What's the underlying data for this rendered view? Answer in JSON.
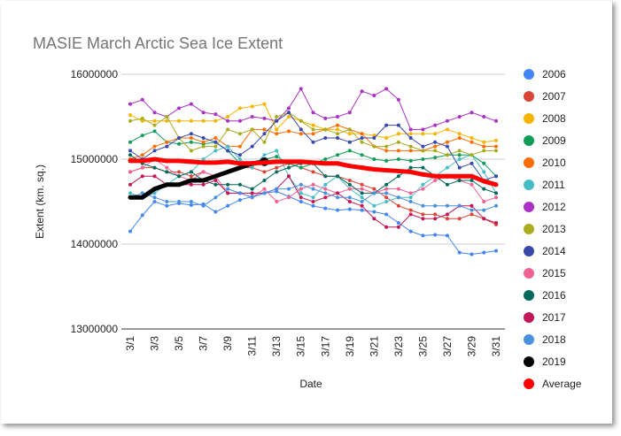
{
  "chart_data": {
    "type": "line",
    "title": "MASIE March Arctic Sea Ice Extent",
    "x_label": "Date",
    "y_label": "Extent (km. sq.)",
    "categories": [
      "3/1",
      null,
      "3/3",
      null,
      "3/5",
      null,
      "3/7",
      null,
      "3/9",
      null,
      "3/11",
      null,
      "3/13",
      null,
      "3/15",
      null,
      "3/17",
      null,
      "3/19",
      null,
      "3/21",
      null,
      "3/23",
      null,
      "3/25",
      null,
      "3/27",
      null,
      "3/29",
      null,
      "3/31"
    ],
    "ylim": [
      13000000,
      16000000
    ],
    "yticks": [
      13000000,
      14000000,
      15000000,
      16000000
    ],
    "grid": true,
    "legend": "right",
    "series": [
      {
        "name": "2006",
        "color": "#4285f4",
        "values": [
          14150000,
          14340000,
          14500000,
          14450000,
          14480000,
          14460000,
          14470000,
          14380000,
          14450000,
          14520000,
          14560000,
          14600000,
          14620000,
          14560000,
          14500000,
          14450000,
          14420000,
          14400000,
          14410000,
          14400000,
          14380000,
          14350000,
          14250000,
          14150000,
          14100000,
          14110000,
          14100000,
          13900000,
          13880000,
          13900000,
          13920000
        ]
      },
      {
        "name": "2007",
        "color": "#db4437",
        "values": [
          14850000,
          14900000,
          14900000,
          14850000,
          14850000,
          14800000,
          14850000,
          14800000,
          14850000,
          14900000,
          14900000,
          14850000,
          14900000,
          14950000,
          14900000,
          14850000,
          14800000,
          14800000,
          14750000,
          14700000,
          14650000,
          14550000,
          14450000,
          14400000,
          14350000,
          14350000,
          14300000,
          14300000,
          14350000,
          14300000,
          14230000
        ]
      },
      {
        "name": "2008",
        "color": "#f4b400",
        "values": [
          15520000,
          15450000,
          15450000,
          15450000,
          15450000,
          15450000,
          15450000,
          15450000,
          15500000,
          15600000,
          15620000,
          15650000,
          15350000,
          15500000,
          15450000,
          15400000,
          15350000,
          15350000,
          15300000,
          15300000,
          15280000,
          15250000,
          15300000,
          15300000,
          15300000,
          15300000,
          15350000,
          15300000,
          15250000,
          15200000,
          15220000
        ]
      },
      {
        "name": "2009",
        "color": "#0f9d58",
        "values": [
          15200000,
          15280000,
          15330000,
          15200000,
          15180000,
          15200000,
          15180000,
          15200000,
          15100000,
          14950000,
          14920000,
          15000000,
          15030000,
          14950000,
          14900000,
          14950000,
          15000000,
          15050000,
          15100000,
          15050000,
          15000000,
          14980000,
          15000000,
          14980000,
          15000000,
          15020000,
          15050000,
          15050000,
          15050000,
          14950000,
          14800000
        ]
      },
      {
        "name": "2010",
        "color": "#ff6d00",
        "values": [
          15000000,
          15050000,
          15150000,
          15200000,
          15250000,
          15250000,
          15200000,
          15250000,
          15150000,
          15150000,
          15350000,
          15350000,
          15300000,
          15330000,
          15300000,
          15300000,
          15350000,
          15400000,
          15350000,
          15300000,
          15150000,
          15100000,
          15100000,
          15100000,
          15100000,
          15150000,
          15200000,
          15250000,
          15200000,
          15150000,
          15150000
        ]
      },
      {
        "name": "2011",
        "color": "#46bdc6",
        "values": [
          14600000,
          14550000,
          14600000,
          14700000,
          14800000,
          14850000,
          15000000,
          15100000,
          15150000,
          15000000,
          14900000,
          15050000,
          15100000,
          14800000,
          14600000,
          14550000,
          14700000,
          14800000,
          14650000,
          14550000,
          14450000,
          14500000,
          14550000,
          14550000,
          14700000,
          14800000,
          14900000,
          15000000,
          15050000,
          14850000,
          14600000
        ]
      },
      {
        "name": "2012",
        "color": "#ab30c4",
        "values": [
          15650000,
          15700000,
          15550000,
          15500000,
          15600000,
          15650000,
          15550000,
          15530000,
          15450000,
          15450000,
          15500000,
          15480000,
          15450000,
          15600000,
          15830000,
          15550000,
          15480000,
          15500000,
          15550000,
          15800000,
          15750000,
          15830000,
          15700000,
          15350000,
          15350000,
          15400000,
          15450000,
          15500000,
          15550000,
          15500000,
          15450000
        ]
      },
      {
        "name": "2013",
        "color": "#abab1f",
        "values": [
          15450000,
          15480000,
          15400000,
          15500000,
          15250000,
          15100000,
          15150000,
          15150000,
          15350000,
          15300000,
          15350000,
          15200000,
          15500000,
          15550000,
          15450000,
          15350000,
          15350000,
          15300000,
          15350000,
          15200000,
          15150000,
          15150000,
          15200000,
          15150000,
          15100000,
          15100000,
          15050000,
          15100000,
          15050000,
          15100000,
          15100000
        ]
      },
      {
        "name": "2014",
        "color": "#3949ab",
        "values": [
          15100000,
          15000000,
          15100000,
          15150000,
          15250000,
          15300000,
          15250000,
          15200000,
          15100000,
          15050000,
          15150000,
          15300000,
          15450000,
          15550000,
          15350000,
          15200000,
          15250000,
          15250000,
          15200000,
          15250000,
          15250000,
          15400000,
          15400000,
          15250000,
          15150000,
          15200000,
          15150000,
          14900000,
          14950000,
          14750000,
          14800000
        ]
      },
      {
        "name": "2015",
        "color": "#f06292",
        "values": [
          14850000,
          14900000,
          15000000,
          14900000,
          14800000,
          14750000,
          14850000,
          14800000,
          14600000,
          14600000,
          14550000,
          14650000,
          14500000,
          14550000,
          14650000,
          14700000,
          14650000,
          14600000,
          14650000,
          14650000,
          14600000,
          14650000,
          14650000,
          14600000,
          14650000,
          14750000,
          14800000,
          14750000,
          14700000,
          14500000,
          14550000
        ]
      },
      {
        "name": "2016",
        "color": "#00695c",
        "values": [
          15050000,
          14950000,
          14900000,
          14850000,
          14800000,
          14850000,
          14750000,
          14700000,
          14700000,
          14700000,
          14650000,
          14750000,
          14850000,
          14900000,
          14950000,
          14950000,
          14800000,
          14800000,
          14700000,
          14600000,
          14600000,
          14700000,
          14800000,
          14900000,
          14900000,
          14800000,
          14700000,
          14750000,
          14750000,
          14650000,
          14600000
        ]
      },
      {
        "name": "2017",
        "color": "#c2185b",
        "values": [
          14700000,
          14800000,
          14800000,
          14700000,
          14700000,
          14700000,
          14700000,
          14750000,
          14600000,
          14600000,
          14600000,
          14600000,
          14650000,
          14800000,
          14550000,
          14500000,
          14550000,
          14600000,
          14500000,
          14450000,
          14300000,
          14200000,
          14200000,
          14350000,
          14300000,
          14300000,
          14350000,
          14450000,
          14450000,
          14300000,
          14250000
        ]
      },
      {
        "name": "2018",
        "color": "#4a90e2",
        "values": [
          14550000,
          14600000,
          14550000,
          14500000,
          14500000,
          14500000,
          14450000,
          14550000,
          14650000,
          14600000,
          14550000,
          14600000,
          14650000,
          14650000,
          14700000,
          14650000,
          14600000,
          14550000,
          14550000,
          14500000,
          14600000,
          14600000,
          14550000,
          14500000,
          14450000,
          14450000,
          14450000,
          14450000,
          14400000,
          14400000,
          14450000
        ]
      },
      {
        "name": "2019",
        "color": "#000000",
        "values": [
          14550000,
          14550000,
          14650000,
          14700000,
          14700000,
          14750000,
          14750000,
          14800000,
          14850000,
          14900000,
          14950000,
          14970000,
          null,
          null,
          null,
          null,
          null,
          null,
          null,
          null,
          null,
          null,
          null,
          null,
          null,
          null,
          null,
          null,
          null,
          null,
          null
        ]
      },
      {
        "name": "Average",
        "color": "#ff0000",
        "values": [
          14980000,
          14980000,
          15000000,
          14980000,
          14980000,
          14970000,
          14960000,
          14960000,
          14970000,
          14950000,
          14950000,
          14960000,
          14970000,
          14970000,
          14970000,
          14960000,
          14950000,
          14950000,
          14920000,
          14900000,
          14880000,
          14870000,
          14860000,
          14850000,
          14820000,
          14800000,
          14800000,
          14800000,
          14800000,
          14740000,
          14700000
        ]
      }
    ]
  }
}
